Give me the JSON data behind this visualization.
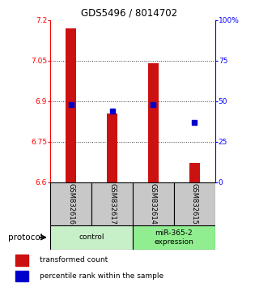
{
  "title": "GDS5496 / 8014702",
  "samples": [
    "GSM832616",
    "GSM832617",
    "GSM832614",
    "GSM832615"
  ],
  "red_values": [
    7.17,
    6.855,
    7.04,
    6.67
  ],
  "blue_percentiles": [
    48,
    44,
    48,
    37
  ],
  "ylim_left": [
    6.6,
    7.2
  ],
  "ylim_right": [
    0,
    100
  ],
  "yticks_left": [
    6.6,
    6.75,
    6.9,
    7.05,
    7.2
  ],
  "yticks_right": [
    0,
    25,
    50,
    75,
    100
  ],
  "ytick_labels_left": [
    "6.6",
    "6.75",
    "6.9",
    "7.05",
    "7.2"
  ],
  "ytick_labels_right": [
    "0",
    "25",
    "50",
    "75",
    "100%"
  ],
  "groups": [
    {
      "label": "control",
      "indices": [
        0,
        1
      ],
      "color": "#c8f0c8"
    },
    {
      "label": "miR-365-2\nexpression",
      "indices": [
        2,
        3
      ],
      "color": "#90ee90"
    }
  ],
  "bar_color": "#cc1111",
  "dot_color": "#0000cc",
  "bar_width": 0.25,
  "legend_red": "transformed count",
  "legend_blue": "percentile rank within the sample",
  "protocol_label": "protocol",
  "background_color": "#ffffff",
  "grid_color": "#333333",
  "sample_box_color": "#c8c8c8"
}
